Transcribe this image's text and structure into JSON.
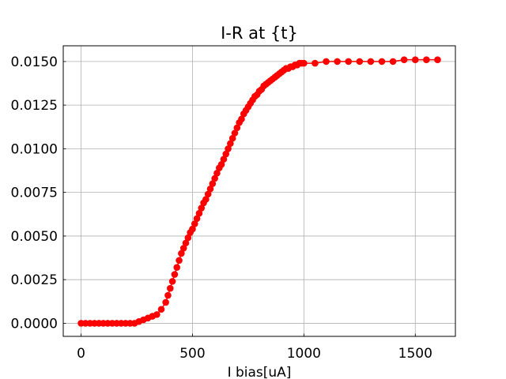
{
  "chart_data": {
    "type": "scatter",
    "title": "I-R at {t}",
    "xlabel": "I bias[uA]",
    "ylabel": "",
    "xlim": [
      -80,
      1680
    ],
    "ylim": [
      -0.00075,
      0.0159
    ],
    "xticks": [
      0,
      500,
      1000,
      1500
    ],
    "xtick_labels": [
      "0",
      "500",
      "1000",
      "1500"
    ],
    "yticks": [
      0.0,
      0.0025,
      0.005,
      0.0075,
      0.01,
      0.0125,
      0.015
    ],
    "ytick_labels": [
      "0.0000",
      "0.0025",
      "0.0050",
      "0.0075",
      "0.0100",
      "0.0125",
      "0.0150"
    ],
    "grid": true,
    "series": [
      {
        "color": "#ff0000",
        "marker": "circle",
        "x": [
          0,
          20,
          40,
          60,
          80,
          100,
          120,
          140,
          160,
          180,
          200,
          220,
          240,
          260,
          280,
          300,
          320,
          340,
          360,
          380,
          390,
          400,
          410,
          420,
          430,
          440,
          450,
          460,
          470,
          480,
          490,
          500,
          510,
          520,
          530,
          540,
          550,
          560,
          570,
          580,
          590,
          600,
          610,
          620,
          630,
          640,
          650,
          660,
          670,
          680,
          690,
          700,
          710,
          720,
          730,
          740,
          750,
          760,
          770,
          780,
          790,
          800,
          810,
          820,
          830,
          840,
          850,
          860,
          870,
          880,
          890,
          900,
          910,
          920,
          930,
          940,
          950,
          960,
          970,
          980,
          990,
          1000,
          1050,
          1100,
          1150,
          1200,
          1250,
          1300,
          1350,
          1400,
          1450,
          1500,
          1550,
          1600
        ],
        "y": [
          0.0,
          0.0,
          0.0,
          0.0,
          0.0,
          0.0,
          0.0,
          0.0,
          0.0,
          0.0,
          0.0,
          0.0,
          0.0,
          0.0001,
          0.0002,
          0.0003,
          0.0004,
          0.0005,
          0.0008,
          0.0012,
          0.0016,
          0.002,
          0.0024,
          0.0028,
          0.0032,
          0.0036,
          0.004,
          0.0043,
          0.0046,
          0.0049,
          0.0052,
          0.0054,
          0.0057,
          0.006,
          0.0063,
          0.0066,
          0.0069,
          0.0071,
          0.0074,
          0.0077,
          0.008,
          0.0083,
          0.0086,
          0.0089,
          0.0091,
          0.0094,
          0.0097,
          0.01,
          0.0103,
          0.0106,
          0.0109,
          0.0112,
          0.0115,
          0.0117,
          0.012,
          0.0122,
          0.0124,
          0.0126,
          0.0128,
          0.013,
          0.0131,
          0.0133,
          0.0134,
          0.0136,
          0.0137,
          0.0138,
          0.0139,
          0.014,
          0.0141,
          0.0142,
          0.0143,
          0.0144,
          0.0145,
          0.0146,
          0.0146,
          0.0147,
          0.0147,
          0.0148,
          0.0148,
          0.0149,
          0.0149,
          0.0149,
          0.0149,
          0.015,
          0.015,
          0.015,
          0.015,
          0.015,
          0.015,
          0.015,
          0.0151,
          0.0151,
          0.0151,
          0.0151
        ]
      }
    ]
  }
}
